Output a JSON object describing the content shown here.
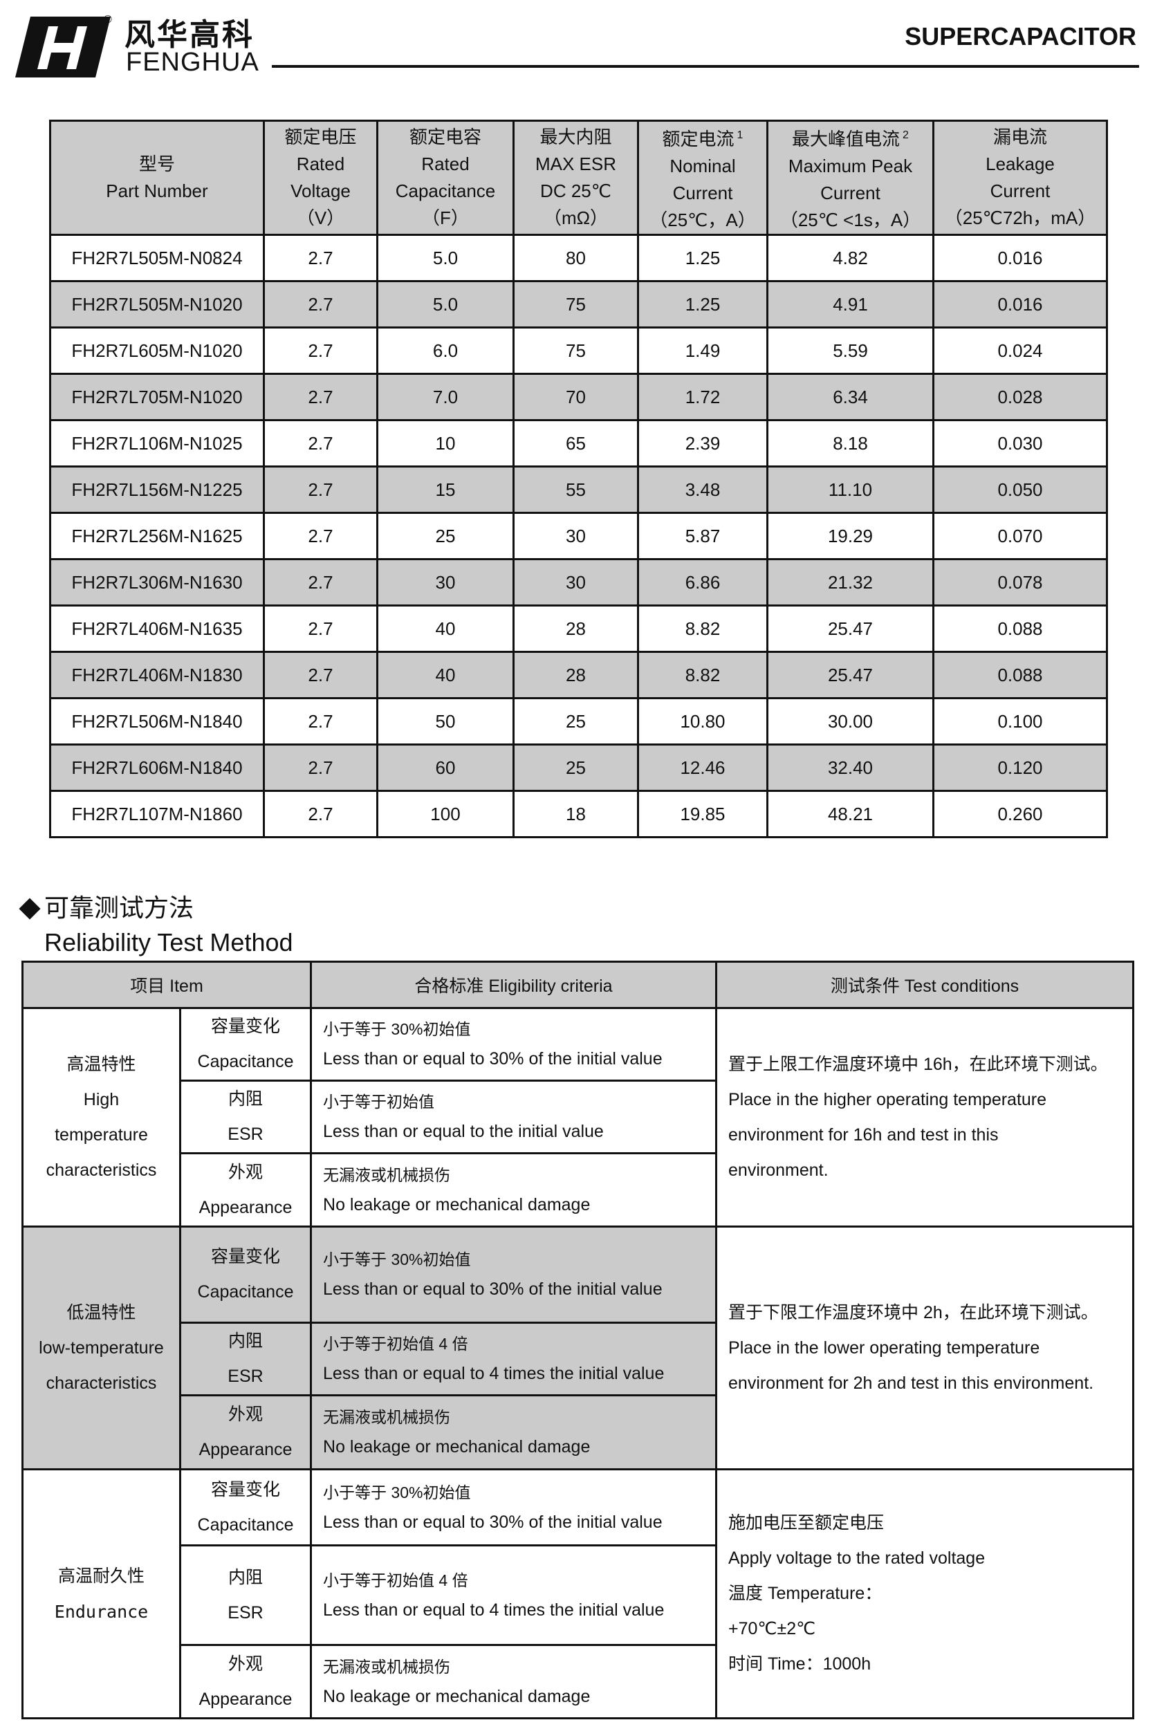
{
  "header": {
    "logo_cn": "风华高科",
    "logo_en": "FENGHUA",
    "registered": "®",
    "title": "SUPERCAPACITOR"
  },
  "spec_table": {
    "headers": [
      {
        "lines": [
          "型号",
          "Part Number"
        ]
      },
      {
        "lines": [
          "额定电压",
          "Rated",
          "Voltage",
          "（V）"
        ]
      },
      {
        "lines": [
          "额定电容",
          "Rated",
          "Capacitance",
          "（F）"
        ]
      },
      {
        "lines": [
          "最大内阻",
          "MAX ESR",
          "DC 25℃",
          "（mΩ）"
        ]
      },
      {
        "lines": [
          "额定电流",
          "Nominal",
          "Current",
          "（25℃，A）"
        ],
        "note": "1"
      },
      {
        "lines": [
          "最大峰值电流",
          "Maximum Peak",
          "Current",
          "（25℃ <1s，A）"
        ],
        "note": "2"
      },
      {
        "lines": [
          "漏电流",
          "Leakage",
          "Current",
          "（25℃72h，mA）"
        ]
      }
    ],
    "rows": [
      [
        "FH2R7L505M-N0824",
        "2.7",
        "5.0",
        "80",
        "1.25",
        "4.82",
        "0.016"
      ],
      [
        "FH2R7L505M-N1020",
        "2.7",
        "5.0",
        "75",
        "1.25",
        "4.91",
        "0.016"
      ],
      [
        "FH2R7L605M-N1020",
        "2.7",
        "6.0",
        "75",
        "1.49",
        "5.59",
        "0.024"
      ],
      [
        "FH2R7L705M-N1020",
        "2.7",
        "7.0",
        "70",
        "1.72",
        "6.34",
        "0.028"
      ],
      [
        "FH2R7L106M-N1025",
        "2.7",
        "10",
        "65",
        "2.39",
        "8.18",
        "0.030"
      ],
      [
        "FH2R7L156M-N1225",
        "2.7",
        "15",
        "55",
        "3.48",
        "11.10",
        "0.050"
      ],
      [
        "FH2R7L256M-N1625",
        "2.7",
        "25",
        "30",
        "5.87",
        "19.29",
        "0.070"
      ],
      [
        "FH2R7L306M-N1630",
        "2.7",
        "30",
        "30",
        "6.86",
        "21.32",
        "0.078"
      ],
      [
        "FH2R7L406M-N1635",
        "2.7",
        "40",
        "28",
        "8.82",
        "25.47",
        "0.088"
      ],
      [
        "FH2R7L406M-N1830",
        "2.7",
        "40",
        "28",
        "8.82",
        "25.47",
        "0.088"
      ],
      [
        "FH2R7L506M-N1840",
        "2.7",
        "50",
        "25",
        "10.80",
        "30.00",
        "0.100"
      ],
      [
        "FH2R7L606M-N1840",
        "2.7",
        "60",
        "25",
        "12.46",
        "32.40",
        "0.120"
      ],
      [
        "FH2R7L107M-N1860",
        "2.7",
        "100",
        "18",
        "19.85",
        "48.21",
        "0.260"
      ]
    ]
  },
  "reliability": {
    "title_cn": "可靠测试方法",
    "title_en": "Reliability Test Method",
    "headers": [
      "项目 Item",
      "合格标准 Eligibility criteria",
      "测试条件 Test conditions"
    ],
    "groups": [
      {
        "item": [
          "高温特性",
          "High",
          "temperature",
          "characteristics"
        ],
        "rows": [
          {
            "sub": [
              "容量变化",
              "Capacitance"
            ],
            "criteria": [
              "小于等于 30%初始值",
              "Less than or equal to 30% of the initial value"
            ]
          },
          {
            "sub": [
              "内阻",
              "ESR"
            ],
            "criteria": [
              "小于等于初始值",
              "Less than or equal to the initial value"
            ]
          },
          {
            "sub": [
              "外观",
              "Appearance"
            ],
            "criteria": [
              "无漏液或机械损伤",
              "No leakage or mechanical damage"
            ]
          }
        ],
        "conditions": [
          "置于上限工作温度环境中 16h，在此环境下测试。",
          "Place in the higher operating temperature",
          "environment for 16h and test in this",
          "environment."
        ]
      },
      {
        "item": [
          "低温特性",
          "low-temperature",
          "characteristics"
        ],
        "rows": [
          {
            "sub": [
              "容量变化",
              "Capacitance"
            ],
            "criteria": [
              "小于等于 30%初始值",
              "Less than or equal to 30% of the initial value"
            ]
          },
          {
            "sub": [
              "内阻",
              "ESR"
            ],
            "criteria": [
              "小于等于初始值 4 倍",
              "Less than or equal to 4 times the initial value"
            ]
          },
          {
            "sub": [
              "外观",
              "Appearance"
            ],
            "criteria": [
              "无漏液或机械损伤",
              "No leakage or mechanical damage"
            ]
          }
        ],
        "conditions": [
          "置于下限工作温度环境中 2h，在此环境下测试。",
          "Place in the lower operating temperature",
          "environment for 2h and test in this environment."
        ]
      },
      {
        "item": [
          "高温耐久性",
          "Endurance"
        ],
        "rows": [
          {
            "sub": [
              "容量变化",
              "Capacitance"
            ],
            "criteria": [
              "小于等于 30%初始值",
              "Less than or equal to 30% of the initial value"
            ]
          },
          {
            "sub": [
              "内阻",
              "ESR"
            ],
            "criteria": [
              "小于等于初始值 4 倍",
              "Less than or equal to 4 times the initial value"
            ]
          },
          {
            "sub": [
              "外观",
              "Appearance"
            ],
            "criteria": [
              "无漏液或机械损伤",
              "No leakage or mechanical damage"
            ]
          }
        ],
        "conditions": [
          "施加电压至额定电压",
          "Apply voltage to the rated voltage",
          "温度 Temperature：",
          "+70℃±2℃",
          "时间 Time：1000h"
        ]
      }
    ]
  }
}
